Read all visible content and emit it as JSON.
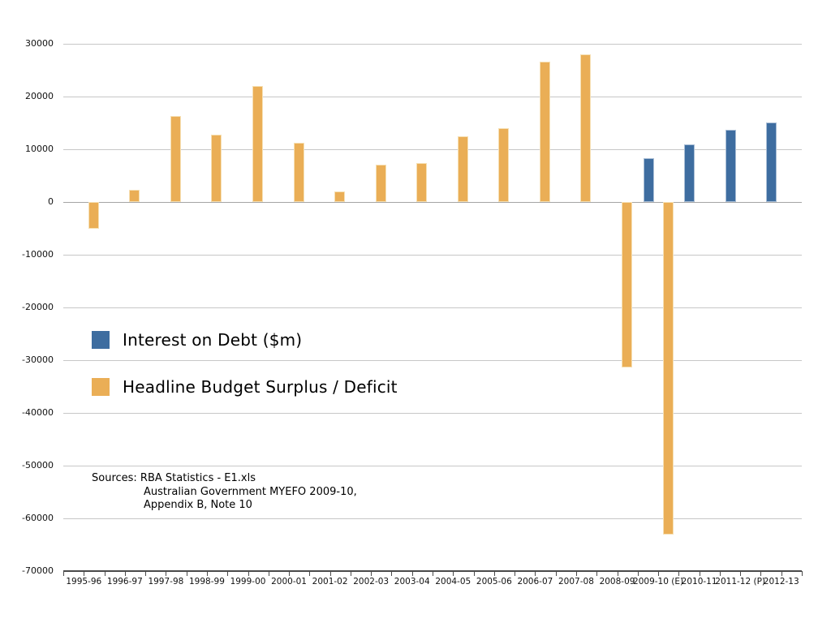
{
  "chart_data": {
    "type": "bar",
    "categories": [
      "1995-96",
      "1996-97",
      "1997-98",
      "1998-99",
      "1999-00",
      "2000-01",
      "2001-02",
      "2002-03",
      "2003-04",
      "2004-05",
      "2005-06",
      "2006-07",
      "2007-08",
      "2008-09",
      "2009-10 (E)",
      "2010-11",
      "2011-12 (P)",
      "2012-13"
    ],
    "series": [
      {
        "name": "Interest on Debt ($m)",
        "color": "#3E6DA0",
        "border_color": "#A9BED6",
        "values": [
          null,
          null,
          null,
          null,
          null,
          null,
          null,
          null,
          null,
          null,
          null,
          null,
          null,
          null,
          8300,
          11000,
          13700,
          15100
        ]
      },
      {
        "name": "Headline Budget Surplus / Deficit",
        "color": "#EAAE56",
        "border_color": "#F6E0B4",
        "values": [
          -5100,
          2400,
          16300,
          12800,
          22100,
          11300,
          2000,
          7200,
          7400,
          12500,
          14100,
          26700,
          28100,
          -31400,
          -63000,
          null,
          null,
          null
        ]
      }
    ],
    "title": "",
    "xlabel": "",
    "ylabel": "",
    "ylim": [
      -70000,
      30000
    ],
    "ytick_interval": 10000,
    "y_ticks": [
      30000,
      20000,
      10000,
      0,
      -10000,
      -20000,
      -30000,
      -40000,
      -50000,
      -60000,
      -70000
    ],
    "grid": true,
    "legend_position": "overlaid-left-middle"
  },
  "sources": {
    "lines": [
      "Sources: RBA Statistics - E1.xls",
      "Australian Government MYEFO 2009-10,",
      "Appendix B, Note 10"
    ]
  }
}
